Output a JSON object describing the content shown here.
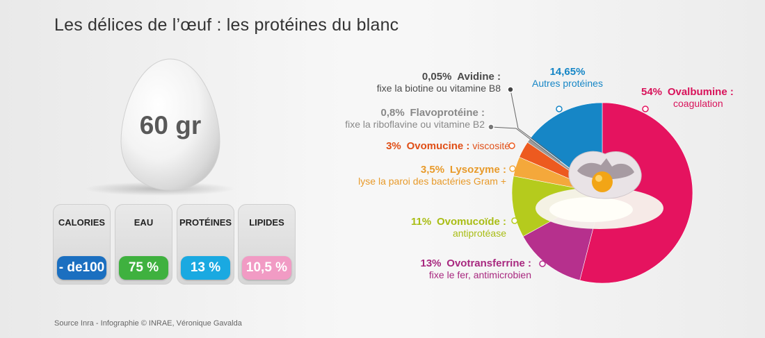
{
  "title": "Les délices de l’œuf : les protéines du blanc",
  "egg": {
    "weight": "60 gr"
  },
  "stats": [
    {
      "label": "CALORIES",
      "value": "- de100",
      "color": "#1b6fc0"
    },
    {
      "label": "EAU",
      "value": "75 %",
      "color": "#3fb13f"
    },
    {
      "label": "PROTÉINES",
      "value": "13 %",
      "color": "#1aa9e1"
    },
    {
      "label": "LIPIDES",
      "value": "10,5 %",
      "color": "#f19bc4"
    }
  ],
  "chart_data": {
    "type": "pie",
    "slices": [
      {
        "pct_label": "54%",
        "name": "Ovalbumine :",
        "desc": "coagulation",
        "value": 54,
        "color": "#e5135f",
        "text_color": "#d8125a"
      },
      {
        "pct_label": "13%",
        "name": "Ovotransferrine :",
        "desc": "fixe le fer, antimicrobien",
        "value": 13,
        "color": "#b6308d",
        "text_color": "#a8287f"
      },
      {
        "pct_label": "11%",
        "name": "Ovomucoïde :",
        "desc": "antiprotéase",
        "value": 11,
        "color": "#b5cb1d",
        "text_color": "#a9bd14"
      },
      {
        "pct_label": "3,5%",
        "name": "Lysozyme :",
        "desc": "lyse la paroi des bactéries Gram +",
        "value": 3.5,
        "color": "#f4a83b",
        "text_color": "#e89a2a"
      },
      {
        "pct_label": "3%",
        "name": "Ovomucine :",
        "desc": "viscosité",
        "value": 3,
        "color": "#ed5a1f",
        "text_color": "#e04f17"
      },
      {
        "pct_label": "0,8%",
        "name": "Flavoprotéine :",
        "desc": "fixe la riboflavine ou vitamine B2",
        "value": 0.8,
        "color": "#9a9a9a",
        "text_color": "#888888"
      },
      {
        "pct_label": "0,05%",
        "name": "Avidine :",
        "desc": "fixe la biotine ou vitamine B8",
        "value": 0.05,
        "color": "#444444",
        "text_color": "#4a4a4a"
      },
      {
        "pct_label": "14,65%",
        "name": "",
        "desc": "Autres protéines",
        "value": 14.65,
        "color": "#1686c6",
        "text_color": "#1686c6"
      }
    ]
  },
  "source": "Source Inra - Infographie © INRAE, Véronique Gavalda"
}
